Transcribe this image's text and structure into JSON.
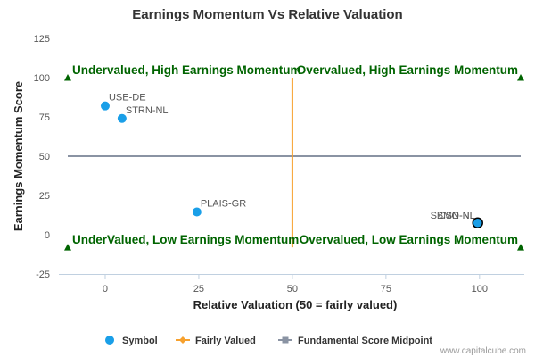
{
  "chart_data": {
    "type": "scatter",
    "title": "Earnings Momentum Vs Relative Valuation",
    "xlabel": "Relative Valuation (50 = fairly valued)",
    "ylabel": "Earnings Momentum Score",
    "xlim": [
      -10,
      111
    ],
    "ylim": [
      -25,
      125
    ],
    "xticks": [
      0,
      25,
      50,
      75,
      100
    ],
    "yticks": [
      -25,
      0,
      25,
      50,
      75,
      100,
      125
    ],
    "grid": false,
    "legend_position": "bottom",
    "points": [
      {
        "label": "USE-DE",
        "x": 0,
        "y": 82
      },
      {
        "label": "STRN-NL",
        "x": 4.5,
        "y": 74
      },
      {
        "label": "PLAIS-GR",
        "x": 24.5,
        "y": 14.5
      },
      {
        "label": "SBMO-NL",
        "x": 99.5,
        "y": 7.5
      },
      {
        "label": "CSN-NL",
        "x": 99.5,
        "y": 7.5,
        "highlighted": true
      }
    ],
    "fairly_valued_x": 50,
    "fairly_valued_y_range": [
      -8,
      100
    ],
    "midpoint_y": 50,
    "corner_markers": [
      {
        "x": -10,
        "y": 100
      },
      {
        "x": 111,
        "y": 100
      },
      {
        "x": -10,
        "y": -8
      },
      {
        "x": 111,
        "y": -8
      }
    ],
    "quadrant_labels": [
      {
        "text": "Undervalued, High Earnings Momentum",
        "x": -10,
        "y": 100,
        "anchor": "start"
      },
      {
        "text": "Overvalued, High Earnings Momentum",
        "x": 111,
        "y": 100,
        "anchor": "end"
      },
      {
        "text": "UnderValued, Low Earnings Momentum",
        "x": -10,
        "y": -8,
        "anchor": "start"
      },
      {
        "text": "Overvalued, Low Earnings Momentum",
        "x": 111,
        "y": -8,
        "anchor": "end"
      }
    ],
    "legend": [
      {
        "label": "Symbol",
        "kind": "circle"
      },
      {
        "label": "Fairly Valued",
        "kind": "diamond-line"
      },
      {
        "label": "Fundamental Score Midpoint",
        "kind": "square-line"
      }
    ],
    "colors": {
      "symbol": "#1a9fe8",
      "fairly_valued": "#f7a12e",
      "midpoint": "#8a93a3",
      "quadrant_text": "#006400",
      "marker": "#006400"
    },
    "credit": "www.capitalcube.com"
  }
}
